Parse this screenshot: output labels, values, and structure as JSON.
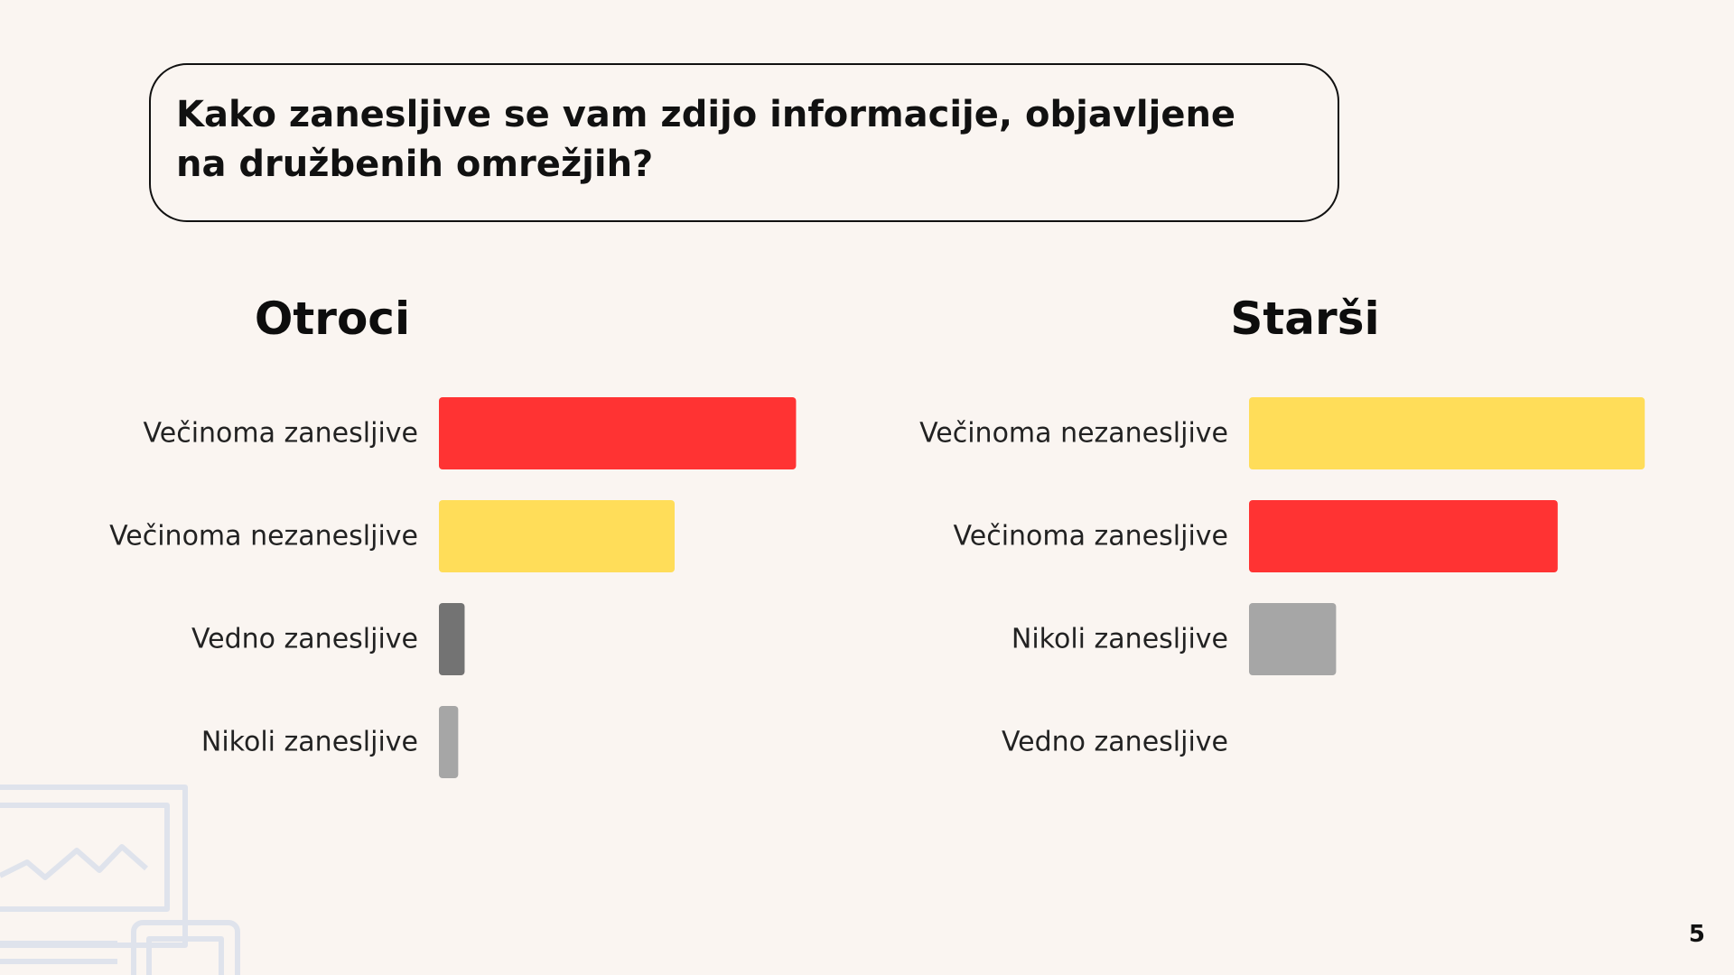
{
  "question": "Kako zanesljive se vam zdijo informacije, objavljene na družbenih omrežjih?",
  "page_number": "5",
  "chart_data": [
    {
      "type": "bar",
      "orientation": "horizontal",
      "title": "Otroci",
      "categories": [
        "Večinoma zanesljive",
        "Večinoma nezanesljive",
        "Vedno zanesljive",
        "Nikoli zanesljive"
      ],
      "values": [
        50,
        33,
        3.6,
        2.7
      ],
      "colors": [
        "#ff3333",
        "#ffdd59",
        "#737373",
        "#a6a6a6"
      ],
      "xlim": [
        0,
        55
      ]
    },
    {
      "type": "bar",
      "orientation": "horizontal",
      "title": "Starši",
      "categories": [
        "Večinoma nezanesljive",
        "Večinoma zanesljive",
        "Nikoli zanesljive",
        "Vedno zanesljive"
      ],
      "values": [
        50,
        39,
        11,
        0
      ],
      "colors": [
        "#ffdd59",
        "#ff3333",
        "#a6a6a6",
        "#737373"
      ],
      "xlim": [
        0,
        55
      ]
    }
  ]
}
